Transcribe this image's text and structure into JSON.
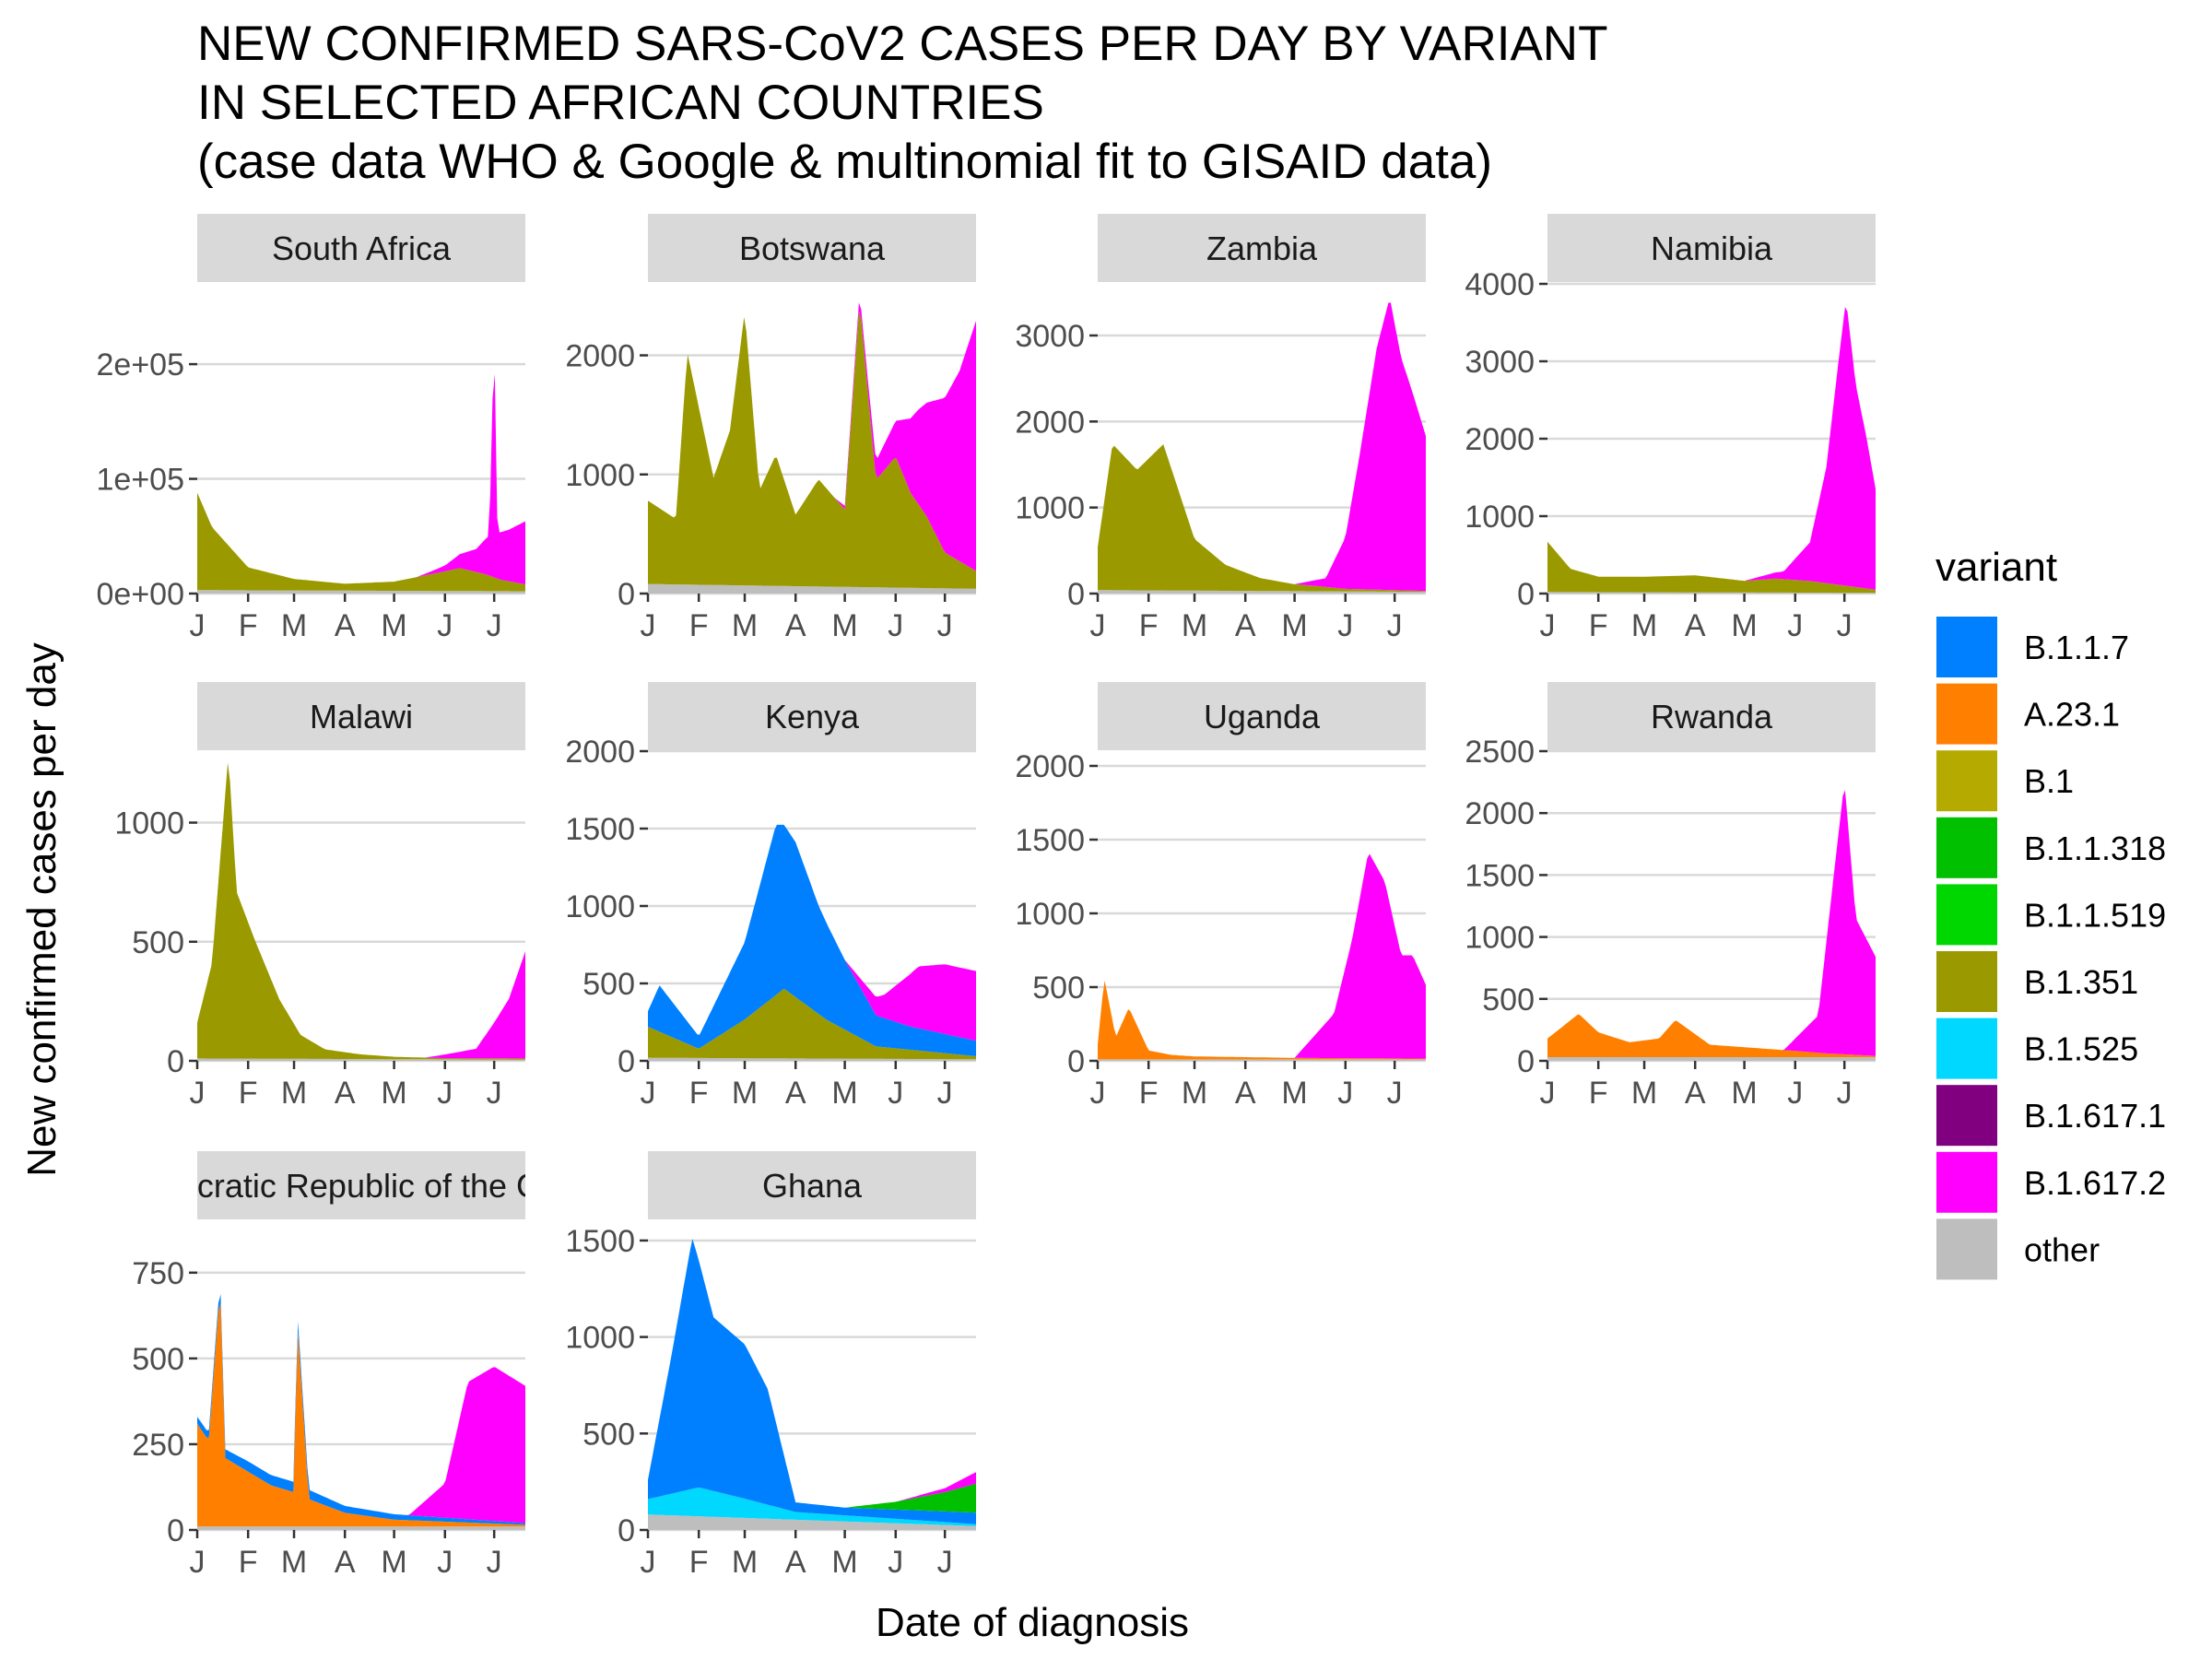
{
  "chart_data": {
    "type": "area",
    "stacked": true,
    "faceted": true,
    "title": [
      "NEW CONFIRMED SARS-CoV2 CASES PER DAY BY VARIANT",
      "IN SELECTED AFRICAN COUNTRIES",
      "(case data WHO & Google & multinomial fit to GISAID data)"
    ],
    "xlabel": "Date of diagnosis",
    "ylabel": "New confirmed cases per day",
    "x_ticks": [
      "J",
      "F",
      "M",
      "A",
      "M",
      "J",
      "J"
    ],
    "x_tick_months": [
      "2021-01",
      "2021-02",
      "2021-03",
      "2021-04",
      "2021-05",
      "2021-06",
      "2021-07"
    ],
    "x_range": [
      "2021-01-01",
      "2021-07-20"
    ],
    "grid": "horizontal",
    "legend": {
      "title": "variant",
      "placement": "right",
      "entries": [
        "B.1.1.7",
        "A.23.1",
        "B.1",
        "B.1.1.318",
        "B.1.1.519",
        "B.1.351",
        "B.1.525",
        "B.1.617.1",
        "B.1.617.2",
        "other"
      ]
    },
    "variant_colors": {
      "B.1.1.7": "#0080FF",
      "A.23.1": "#FF8000",
      "B.1": "#B4AA00",
      "B.1.1.318": "#00C000",
      "B.1.1.519": "#00D700",
      "B.1.351": "#9A9A00",
      "B.1.525": "#00D8FF",
      "B.1.617.1": "#800080",
      "B.1.617.2": "#FF00FF",
      "other": "#BEBEBE"
    },
    "panels": [
      {
        "country": "South Africa",
        "ylim": [
          0,
          270000
        ],
        "yticks": [
          0,
          100000,
          200000
        ],
        "ytick_labels": [
          "0e+00",
          "1e+05",
          "2e+05"
        ],
        "series": [
          {
            "name": "other",
            "dates": [
              "2021-01-01",
              "2021-07-20"
            ],
            "values": [
              3000,
              2000
            ]
          },
          {
            "name": "B.1.351",
            "dates": [
              "2021-01-01",
              "2021-01-10",
              "2021-02-01",
              "2021-03-01",
              "2021-04-01",
              "2021-05-01",
              "2021-05-25",
              "2021-06-10",
              "2021-06-25",
              "2021-07-05",
              "2021-07-20"
            ],
            "values": [
              85000,
              55000,
              20000,
              10000,
              6000,
              8000,
              15000,
              20000,
              15000,
              10000,
              6000
            ]
          },
          {
            "name": "B.1.617.2",
            "dates": [
              "2021-05-15",
              "2021-06-01",
              "2021-06-20",
              "2021-06-28",
              "2021-07-01",
              "2021-07-03",
              "2021-07-10",
              "2021-07-20"
            ],
            "values": [
              0,
              5000,
              20000,
              35000,
              215000,
              40000,
              45000,
              55000
            ]
          }
        ]
      },
      {
        "country": "Botswana",
        "ylim": [
          0,
          2600
        ],
        "yticks": [
          0,
          1000,
          2000
        ],
        "ytick_labels": [
          "0",
          "1000",
          "2000"
        ],
        "series": [
          {
            "name": "other",
            "dates": [
              "2021-01-01",
              "2021-07-20"
            ],
            "values": [
              80,
              40
            ]
          },
          {
            "name": "B.1.351",
            "dates": [
              "2021-01-01",
              "2021-01-18",
              "2021-01-25",
              "2021-02-10",
              "2021-02-20",
              "2021-03-01",
              "2021-03-10",
              "2021-03-20",
              "2021-04-01",
              "2021-04-15",
              "2021-05-01",
              "2021-05-10",
              "2021-05-20",
              "2021-06-01",
              "2021-06-10",
              "2021-06-20",
              "2021-07-01",
              "2021-07-20"
            ],
            "values": [
              700,
              550,
              1950,
              900,
              1300,
              2300,
              800,
              1100,
              600,
              900,
              650,
              2400,
              900,
              1100,
              800,
              600,
              300,
              150
            ]
          },
          {
            "name": "B.1.617.2",
            "dates": [
              "2021-04-25",
              "2021-05-15",
              "2021-06-01",
              "2021-06-15",
              "2021-07-01",
              "2021-07-10",
              "2021-07-20"
            ],
            "values": [
              0,
              100,
              300,
              800,
              1300,
              1600,
              2100
            ]
          }
        ]
      },
      {
        "country": "Zambia",
        "ylim": [
          0,
          3600
        ],
        "yticks": [
          0,
          1000,
          2000,
          3000
        ],
        "ytick_labels": [
          "0",
          "1000",
          "2000",
          "3000"
        ],
        "series": [
          {
            "name": "other",
            "dates": [
              "2021-01-01",
              "2021-07-20"
            ],
            "values": [
              40,
              20
            ]
          },
          {
            "name": "B.1.351",
            "dates": [
              "2021-01-01",
              "2021-01-10",
              "2021-01-25",
              "2021-02-10",
              "2021-03-01",
              "2021-03-20",
              "2021-04-10",
              "2021-05-01",
              "2021-05-15",
              "2021-06-01",
              "2021-07-20"
            ],
            "values": [
              500,
              1700,
              1400,
              1700,
              600,
              300,
              150,
              80,
              60,
              30,
              10
            ]
          },
          {
            "name": "B.1.617.2",
            "dates": [
              "2021-05-01",
              "2021-05-20",
              "2021-06-01",
              "2021-06-10",
              "2021-06-20",
              "2021-06-28",
              "2021-07-05",
              "2021-07-12",
              "2021-07-20"
            ],
            "values": [
              0,
              100,
              600,
              1600,
              2800,
              3400,
              2700,
              2300,
              1800
            ]
          }
        ]
      },
      {
        "country": "Namibia",
        "ylim": [
          0,
          4000
        ],
        "yticks": [
          0,
          1000,
          2000,
          3000,
          4000
        ],
        "ytick_labels": [
          "0",
          "1000",
          "2000",
          "3000",
          "4000"
        ],
        "series": [
          {
            "name": "other",
            "dates": [
              "2021-01-01",
              "2021-07-20"
            ],
            "values": [
              20,
              10
            ]
          },
          {
            "name": "B.1.351",
            "dates": [
              "2021-01-01",
              "2021-01-15",
              "2021-02-01",
              "2021-03-01",
              "2021-04-01",
              "2021-05-01",
              "2021-05-20",
              "2021-06-10",
              "2021-07-20"
            ],
            "values": [
              650,
              300,
              200,
              200,
              220,
              150,
              180,
              150,
              40
            ]
          },
          {
            "name": "B.1.617.2",
            "dates": [
              "2021-05-01",
              "2021-05-25",
              "2021-06-10",
              "2021-06-20",
              "2021-06-28",
              "2021-07-02",
              "2021-07-08",
              "2021-07-14",
              "2021-07-20"
            ],
            "values": [
              0,
              100,
              500,
              1500,
              3000,
              3700,
              2600,
              2000,
              1300
            ]
          }
        ]
      },
      {
        "country": "Malawi",
        "ylim": [
          0,
          1300
        ],
        "yticks": [
          0,
          500,
          1000
        ],
        "ytick_labels": [
          "0",
          "500",
          "1000"
        ],
        "series": [
          {
            "name": "other",
            "dates": [
              "2021-01-01",
              "2021-07-20"
            ],
            "values": [
              10,
              5
            ]
          },
          {
            "name": "B.1.351",
            "dates": [
              "2021-01-01",
              "2021-01-10",
              "2021-01-20",
              "2021-01-25",
              "2021-02-05",
              "2021-02-20",
              "2021-03-05",
              "2021-03-20",
              "2021-04-10",
              "2021-05-01",
              "2021-06-01",
              "2021-07-20"
            ],
            "values": [
              150,
              400,
              1280,
              700,
              500,
              250,
              100,
              40,
              20,
              10,
              5,
              5
            ]
          },
          {
            "name": "B.1.617.2",
            "dates": [
              "2021-05-20",
              "2021-06-20",
              "2021-07-01",
              "2021-07-10",
              "2021-07-20"
            ],
            "values": [
              0,
              40,
              150,
              250,
              450
            ]
          }
        ]
      },
      {
        "country": "Kenya",
        "ylim": [
          0,
          2000
        ],
        "yticks": [
          0,
          500,
          1000,
          1500,
          2000
        ],
        "ytick_labels": [
          "0",
          "500",
          "1000",
          "1500",
          "2000"
        ],
        "series": [
          {
            "name": "other",
            "dates": [
              "2021-01-01",
              "2021-07-20"
            ],
            "values": [
              20,
              10
            ]
          },
          {
            "name": "B.1.351",
            "dates": [
              "2021-01-01",
              "2021-02-01",
              "2021-03-01",
              "2021-03-25",
              "2021-04-20",
              "2021-05-20",
              "2021-07-20"
            ],
            "values": [
              200,
              60,
              250,
              450,
              250,
              80,
              20
            ]
          },
          {
            "name": "B.1.1.7",
            "dates": [
              "2021-01-01",
              "2021-01-08",
              "2021-02-01",
              "2021-03-01",
              "2021-03-20",
              "2021-04-01",
              "2021-04-15",
              "2021-05-01",
              "2021-05-20",
              "2021-06-10",
              "2021-07-20"
            ],
            "values": [
              100,
              300,
              80,
              500,
              1100,
              1000,
              700,
              450,
              200,
              150,
              100
            ]
          },
          {
            "name": "B.1.617.2",
            "dates": [
              "2021-05-01",
              "2021-05-25",
              "2021-06-15",
              "2021-07-01",
              "2021-07-20"
            ],
            "values": [
              0,
              150,
              400,
              450,
              450
            ]
          }
        ]
      },
      {
        "country": "Uganda",
        "ylim": [
          0,
          2100
        ],
        "yticks": [
          0,
          500,
          1000,
          1500,
          2000
        ],
        "ytick_labels": [
          "0",
          "500",
          "1000",
          "1500",
          "2000"
        ],
        "series": [
          {
            "name": "other",
            "dates": [
              "2021-01-01",
              "2021-07-20"
            ],
            "values": [
              10,
              10
            ]
          },
          {
            "name": "A.23.1",
            "dates": [
              "2021-01-01",
              "2021-01-05",
              "2021-01-12",
              "2021-01-20",
              "2021-02-01",
              "2021-02-15",
              "2021-03-01",
              "2021-04-01",
              "2021-05-01",
              "2021-07-20"
            ],
            "values": [
              100,
              550,
              150,
              350,
              60,
              30,
              20,
              15,
              10,
              5
            ]
          },
          {
            "name": "B.1.617.2",
            "dates": [
              "2021-05-01",
              "2021-05-25",
              "2021-06-05",
              "2021-06-15",
              "2021-06-25",
              "2021-07-05",
              "2021-07-12",
              "2021-07-20"
            ],
            "values": [
              0,
              300,
              800,
              1400,
              1200,
              700,
              700,
              500
            ]
          }
        ]
      },
      {
        "country": "Rwanda",
        "ylim": [
          0,
          2500
        ],
        "yticks": [
          0,
          500,
          1000,
          1500,
          2000,
          2500
        ],
        "ytick_labels": [
          "0",
          "500",
          "1000",
          "1500",
          "2000",
          "2500"
        ],
        "series": [
          {
            "name": "other",
            "dates": [
              "2021-01-01",
              "2021-07-20"
            ],
            "values": [
              30,
              30
            ]
          },
          {
            "name": "A.23.1",
            "dates": [
              "2021-01-01",
              "2021-01-20",
              "2021-02-01",
              "2021-02-20",
              "2021-03-10",
              "2021-03-20",
              "2021-04-10",
              "2021-05-01",
              "2021-06-01",
              "2021-06-20",
              "2021-07-20"
            ],
            "values": [
              150,
              350,
              200,
              120,
              150,
              300,
              100,
              80,
              50,
              30,
              10
            ]
          },
          {
            "name": "B.1.617.2",
            "dates": [
              "2021-05-25",
              "2021-06-15",
              "2021-06-25",
              "2021-07-01",
              "2021-07-08",
              "2021-07-20"
            ],
            "values": [
              0,
              300,
              1500,
              2200,
              1100,
              800
            ]
          }
        ]
      },
      {
        "country": "Democratic Republic of the Congo",
        "ylim": [
          0,
          900
        ],
        "yticks": [
          0,
          250,
          500,
          750
        ],
        "ytick_labels": [
          "0",
          "250",
          "500",
          "750"
        ],
        "series": [
          {
            "name": "other",
            "dates": [
              "2021-01-01",
              "2021-07-20"
            ],
            "values": [
              10,
              10
            ]
          },
          {
            "name": "A.23.1",
            "dates": [
              "2021-01-01",
              "2021-01-08",
              "2021-01-15",
              "2021-01-18",
              "2021-01-25",
              "2021-02-15",
              "2021-03-01",
              "2021-03-03",
              "2021-03-10",
              "2021-04-01",
              "2021-05-01",
              "2021-07-20"
            ],
            "values": [
              300,
              250,
              700,
              200,
              180,
              120,
              100,
              600,
              80,
              40,
              20,
              5
            ]
          },
          {
            "name": "B.1.1.7",
            "dates": [
              "2021-01-01",
              "2021-02-01",
              "2021-03-01",
              "2021-04-01",
              "2021-07-20"
            ],
            "values": [
              20,
              30,
              30,
              20,
              5
            ]
          },
          {
            "name": "B.1.617.2",
            "dates": [
              "2021-05-10",
              "2021-06-01",
              "2021-06-15",
              "2021-07-01",
              "2021-07-20"
            ],
            "values": [
              0,
              100,
              400,
              450,
              400
            ]
          }
        ]
      },
      {
        "country": "Ghana",
        "ylim": [
          0,
          1600
        ],
        "yticks": [
          0,
          500,
          1000,
          1500
        ],
        "ytick_labels": [
          "0",
          "500",
          "1000",
          "1500"
        ],
        "series": [
          {
            "name": "other",
            "dates": [
              "2021-01-01",
              "2021-07-20"
            ],
            "values": [
              80,
              20
            ]
          },
          {
            "name": "B.1.525",
            "dates": [
              "2021-01-01",
              "2021-02-01",
              "2021-03-01",
              "2021-04-01",
              "2021-07-20"
            ],
            "values": [
              80,
              150,
              100,
              40,
              10
            ]
          },
          {
            "name": "B.1.1.7",
            "dates": [
              "2021-01-01",
              "2021-01-15",
              "2021-01-28",
              "2021-02-10",
              "2021-03-01",
              "2021-03-15",
              "2021-04-01",
              "2021-05-01",
              "2021-07-20"
            ],
            "values": [
              100,
              700,
              1300,
              900,
              800,
              600,
              50,
              40,
              60
            ]
          },
          {
            "name": "B.1.1.318",
            "dates": [
              "2021-05-01",
              "2021-06-01",
              "2021-07-01",
              "2021-07-20"
            ],
            "values": [
              0,
              40,
              100,
              150
            ]
          },
          {
            "name": "B.1.617.2",
            "dates": [
              "2021-06-01",
              "2021-07-01",
              "2021-07-20"
            ],
            "values": [
              0,
              20,
              60
            ]
          }
        ]
      }
    ]
  }
}
